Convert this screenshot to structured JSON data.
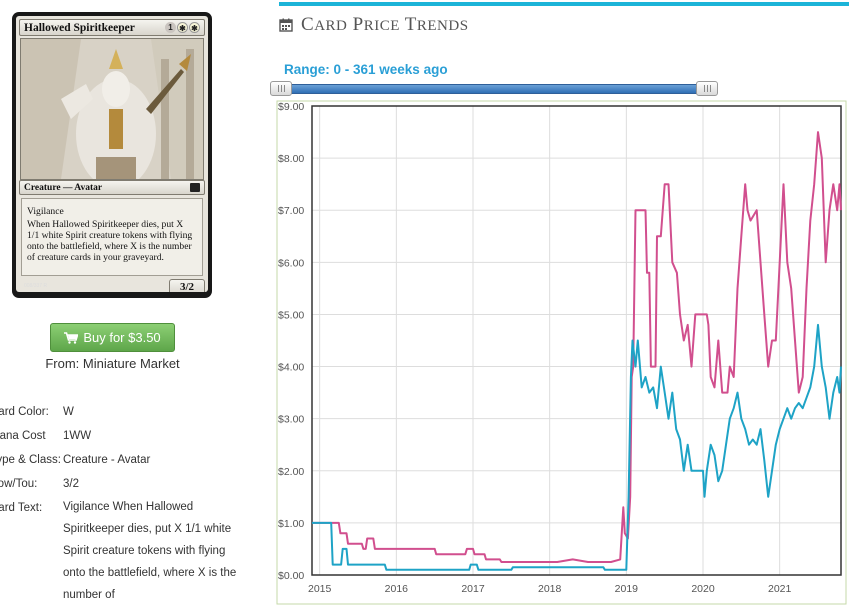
{
  "card": {
    "name": "Hallowed Spiritkeeper",
    "mana_generic": "1",
    "mana_white_1": "✱",
    "mana_white_2": "✱",
    "type_line": "Creature — Avatar",
    "rules_keyword": "Vigilance",
    "rules_text": "When Hallowed Spiritkeeper dies, put X 1/1 white Spirit creature tokens with flying onto the battlefield, where X is the number of creature cards in your graveyard.",
    "pt": "3/2",
    "collector": "008/337 R"
  },
  "buy": {
    "label": "Buy for $3.50",
    "from": "From: Miniature Market",
    "icon": "cart-icon",
    "color": "#6cb65a"
  },
  "details": [
    {
      "label": "Card Color:",
      "value": "W"
    },
    {
      "label": "Mana Cost",
      "value": "1WW"
    },
    {
      "label": "Type & Class:",
      "value": "Creature - Avatar"
    },
    {
      "label": "Pow/Tou:",
      "value": "3/2"
    },
    {
      "label": "Card Text:",
      "value": "Vigilance When Hallowed Spiritkeeper dies, put X 1/1 white Spirit creature tokens with flying onto the battlefield, where X is the number of"
    }
  ],
  "section": {
    "icon": "calendar-icon",
    "title_first": "C",
    "title_rest_1": "ARD",
    "title_p": "P",
    "title_rest_2": "RICE",
    "title_t": "T",
    "title_rest_3": "RENDS",
    "accent": "#1cb4d8"
  },
  "range": {
    "label": "Range: 0 - 361 weeks ago",
    "start_weeks_ago": 361,
    "end_weeks_ago": 0
  },
  "chart_data": {
    "type": "line",
    "title": "",
    "xlabel": "",
    "ylabel": "",
    "x_ticks": [
      "2015",
      "2016",
      "2017",
      "2018",
      "2019",
      "2020",
      "2021"
    ],
    "y_ticks": [
      "$0.00",
      "$1.00",
      "$2.00",
      "$3.00",
      "$4.00",
      "$5.00",
      "$6.00",
      "$7.00",
      "$8.00",
      "$9.00"
    ],
    "xlim": [
      2014.9,
      2021.8
    ],
    "ylim": [
      0,
      9
    ],
    "grid": true,
    "series": [
      {
        "color": "#d14f8e",
        "points": [
          [
            2014.9,
            1.0
          ],
          [
            2015.25,
            1.0
          ],
          [
            2015.27,
            0.8
          ],
          [
            2015.35,
            0.8
          ],
          [
            2015.37,
            0.6
          ],
          [
            2015.55,
            0.6
          ],
          [
            2015.57,
            0.5
          ],
          [
            2015.6,
            0.5
          ],
          [
            2015.62,
            0.7
          ],
          [
            2015.7,
            0.7
          ],
          [
            2015.72,
            0.5
          ],
          [
            2016.5,
            0.5
          ],
          [
            2016.52,
            0.4
          ],
          [
            2016.9,
            0.4
          ],
          [
            2016.92,
            0.5
          ],
          [
            2017.0,
            0.5
          ],
          [
            2017.02,
            0.4
          ],
          [
            2017.15,
            0.4
          ],
          [
            2017.17,
            0.3
          ],
          [
            2017.35,
            0.3
          ],
          [
            2017.37,
            0.25
          ],
          [
            2018.1,
            0.25
          ],
          [
            2018.3,
            0.3
          ],
          [
            2018.5,
            0.25
          ],
          [
            2018.8,
            0.25
          ],
          [
            2018.92,
            0.3
          ],
          [
            2018.96,
            1.3
          ],
          [
            2018.98,
            0.8
          ],
          [
            2019.02,
            0.7
          ],
          [
            2019.05,
            1.5
          ],
          [
            2019.07,
            3.8
          ],
          [
            2019.09,
            4.0
          ],
          [
            2019.12,
            7.0
          ],
          [
            2019.25,
            7.0
          ],
          [
            2019.27,
            5.8
          ],
          [
            2019.3,
            5.8
          ],
          [
            2019.32,
            4.0
          ],
          [
            2019.38,
            4.0
          ],
          [
            2019.4,
            6.5
          ],
          [
            2019.45,
            6.5
          ],
          [
            2019.5,
            7.5
          ],
          [
            2019.55,
            7.5
          ],
          [
            2019.6,
            6.0
          ],
          [
            2019.66,
            5.8
          ],
          [
            2019.7,
            5.0
          ],
          [
            2019.75,
            4.5
          ],
          [
            2019.8,
            4.8
          ],
          [
            2019.85,
            4.0
          ],
          [
            2019.9,
            5.0
          ],
          [
            2020.0,
            5.0
          ],
          [
            2020.05,
            5.0
          ],
          [
            2020.07,
            4.8
          ],
          [
            2020.1,
            3.8
          ],
          [
            2020.15,
            3.6
          ],
          [
            2020.2,
            4.5
          ],
          [
            2020.25,
            3.5
          ],
          [
            2020.32,
            3.5
          ],
          [
            2020.35,
            4.0
          ],
          [
            2020.4,
            3.8
          ],
          [
            2020.45,
            5.5
          ],
          [
            2020.5,
            6.5
          ],
          [
            2020.55,
            7.5
          ],
          [
            2020.58,
            7.0
          ],
          [
            2020.62,
            6.8
          ],
          [
            2020.7,
            7.0
          ],
          [
            2020.75,
            6.0
          ],
          [
            2020.8,
            5.0
          ],
          [
            2020.85,
            4.0
          ],
          [
            2020.9,
            4.5
          ],
          [
            2020.95,
            4.5
          ],
          [
            2021.0,
            6.0
          ],
          [
            2021.05,
            7.5
          ],
          [
            2021.1,
            6.0
          ],
          [
            2021.15,
            5.5
          ],
          [
            2021.2,
            4.5
          ],
          [
            2021.25,
            3.5
          ],
          [
            2021.3,
            3.8
          ],
          [
            2021.35,
            5.5
          ],
          [
            2021.4,
            6.8
          ],
          [
            2021.45,
            7.5
          ],
          [
            2021.5,
            8.5
          ],
          [
            2021.55,
            8.0
          ],
          [
            2021.6,
            6.0
          ],
          [
            2021.65,
            7.0
          ],
          [
            2021.7,
            7.5
          ],
          [
            2021.75,
            7.0
          ],
          [
            2021.78,
            7.5
          ],
          [
            2021.8,
            7.0
          ]
        ]
      },
      {
        "color": "#1ea3c6",
        "points": [
          [
            2014.9,
            1.0
          ],
          [
            2015.15,
            1.0
          ],
          [
            2015.17,
            0.2
          ],
          [
            2015.28,
            0.2
          ],
          [
            2015.3,
            0.5
          ],
          [
            2015.35,
            0.5
          ],
          [
            2015.37,
            0.2
          ],
          [
            2015.85,
            0.2
          ],
          [
            2015.87,
            0.1
          ],
          [
            2016.95,
            0.1
          ],
          [
            2016.97,
            0.2
          ],
          [
            2017.05,
            0.2
          ],
          [
            2017.07,
            0.1
          ],
          [
            2017.5,
            0.1
          ],
          [
            2017.52,
            0.15
          ],
          [
            2018.7,
            0.15
          ],
          [
            2018.72,
            0.1
          ],
          [
            2019.0,
            0.1
          ],
          [
            2019.03,
            1.5
          ],
          [
            2019.06,
            3.8
          ],
          [
            2019.08,
            4.5
          ],
          [
            2019.12,
            4.0
          ],
          [
            2019.15,
            4.5
          ],
          [
            2019.2,
            3.6
          ],
          [
            2019.25,
            3.8
          ],
          [
            2019.3,
            3.5
          ],
          [
            2019.35,
            3.6
          ],
          [
            2019.4,
            3.2
          ],
          [
            2019.45,
            4.0
          ],
          [
            2019.5,
            3.5
          ],
          [
            2019.55,
            3.0
          ],
          [
            2019.6,
            3.5
          ],
          [
            2019.65,
            2.8
          ],
          [
            2019.7,
            2.6
          ],
          [
            2019.75,
            2.0
          ],
          [
            2019.8,
            2.5
          ],
          [
            2019.85,
            2.0
          ],
          [
            2019.9,
            2.0
          ],
          [
            2020.0,
            2.0
          ],
          [
            2020.02,
            1.5
          ],
          [
            2020.05,
            2.0
          ],
          [
            2020.1,
            2.5
          ],
          [
            2020.15,
            2.3
          ],
          [
            2020.2,
            1.8
          ],
          [
            2020.25,
            2.0
          ],
          [
            2020.3,
            2.5
          ],
          [
            2020.35,
            3.0
          ],
          [
            2020.4,
            3.2
          ],
          [
            2020.45,
            3.5
          ],
          [
            2020.5,
            3.0
          ],
          [
            2020.55,
            2.8
          ],
          [
            2020.6,
            2.5
          ],
          [
            2020.65,
            2.6
          ],
          [
            2020.7,
            2.5
          ],
          [
            2020.75,
            2.8
          ],
          [
            2020.8,
            2.2
          ],
          [
            2020.85,
            1.5
          ],
          [
            2020.9,
            2.0
          ],
          [
            2020.95,
            2.5
          ],
          [
            2021.0,
            2.8
          ],
          [
            2021.05,
            3.0
          ],
          [
            2021.1,
            3.2
          ],
          [
            2021.15,
            3.0
          ],
          [
            2021.2,
            3.2
          ],
          [
            2021.25,
            3.3
          ],
          [
            2021.3,
            3.2
          ],
          [
            2021.35,
            3.4
          ],
          [
            2021.4,
            3.6
          ],
          [
            2021.45,
            4.0
          ],
          [
            2021.5,
            4.8
          ],
          [
            2021.55,
            4.0
          ],
          [
            2021.6,
            3.6
          ],
          [
            2021.65,
            3.0
          ],
          [
            2021.7,
            3.5
          ],
          [
            2021.75,
            3.8
          ],
          [
            2021.78,
            3.5
          ],
          [
            2021.8,
            4.0
          ]
        ]
      }
    ]
  }
}
